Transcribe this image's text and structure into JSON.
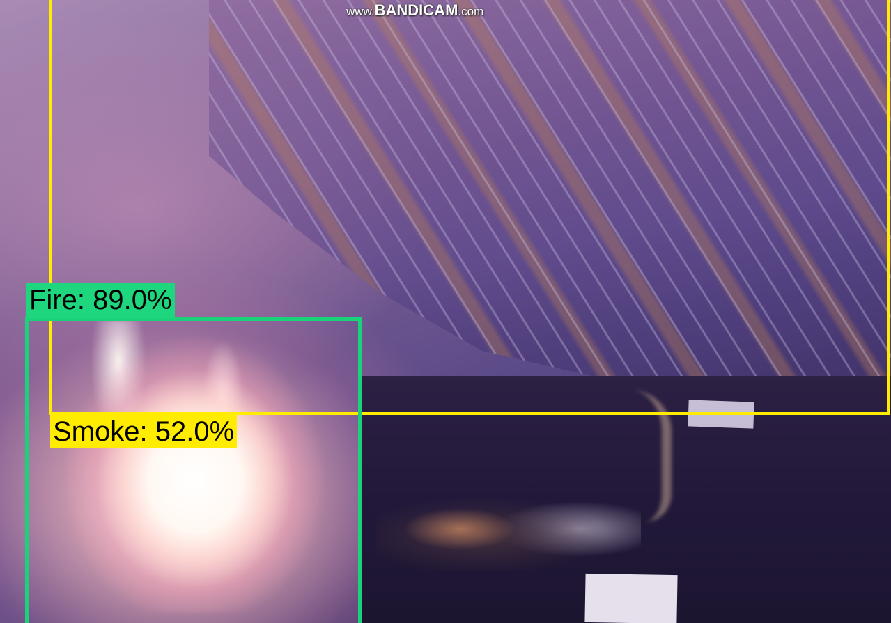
{
  "watermark": {
    "prefix": "www.",
    "brand": "BANDICAM",
    "suffix": ".com"
  },
  "detections": [
    {
      "label": "Fire: 89.0%",
      "class": "Fire",
      "confidence": 0.89,
      "color": "#19d27a"
    },
    {
      "label": "Smoke: 52.0%",
      "class": "Smoke",
      "confidence": 0.52,
      "color": "#ffec00"
    }
  ]
}
